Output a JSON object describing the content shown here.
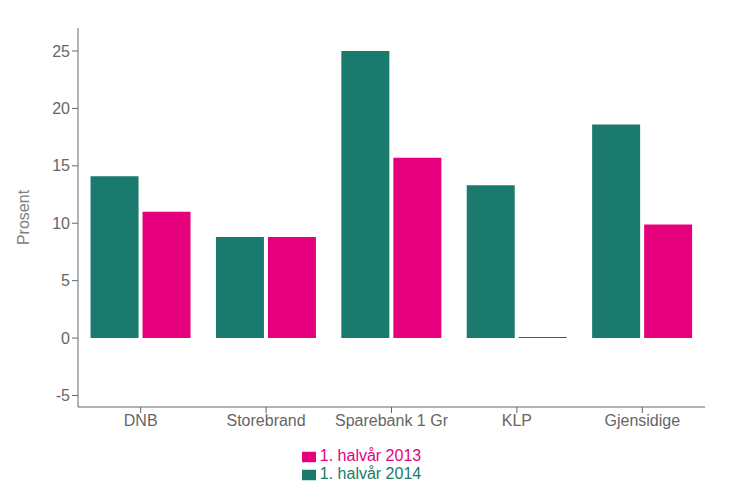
{
  "chart_data": {
    "type": "bar",
    "categories": [
      "DNB",
      "Storebrand",
      "Sparebank 1 Gr",
      "KLP",
      "Gjensidige"
    ],
    "series": [
      {
        "name": "1. halvår 2014",
        "color": "#1a7a6e",
        "values": [
          14.1,
          8.8,
          25.0,
          13.3,
          18.6
        ]
      },
      {
        "name": "1. halvår 2013",
        "color": "#e6007e",
        "values": [
          11.0,
          8.8,
          15.7,
          0.1,
          9.9
        ]
      }
    ],
    "ylabel": "Prosent",
    "ylim": [
      -6,
      27
    ],
    "yticks": [
      -5,
      0,
      5,
      10,
      15,
      20,
      25
    ],
    "grid": false,
    "legend": "bottom"
  }
}
